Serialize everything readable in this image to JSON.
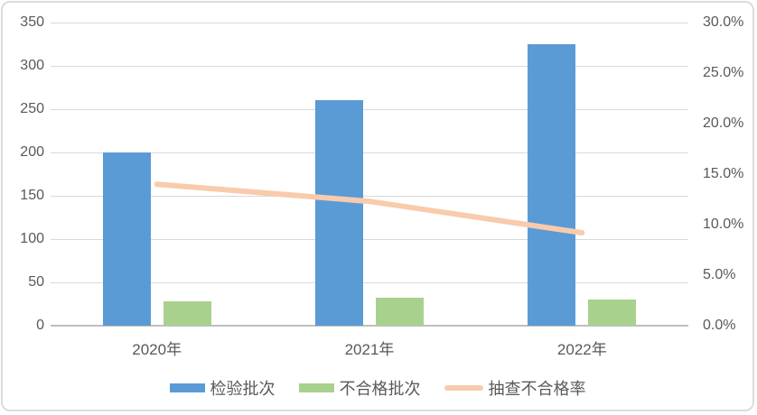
{
  "chart_data": {
    "type": "combo",
    "categories": [
      "2020年",
      "2021年",
      "2022年"
    ],
    "series": [
      {
        "name": "检验批次",
        "type": "bar",
        "axis": "left",
        "color": "#5B9BD5",
        "values": [
          200,
          260,
          325
        ]
      },
      {
        "name": "不合格批次",
        "type": "bar",
        "axis": "left",
        "color": "#A9D18E",
        "values": [
          28,
          32,
          30
        ]
      },
      {
        "name": "抽查不合格率",
        "type": "line",
        "axis": "right",
        "color": "#F8CBAD",
        "values": [
          14.0,
          12.3,
          9.2
        ],
        "unit": "%"
      }
    ],
    "left_axis": {
      "min": 0,
      "max": 350,
      "step": 50,
      "tick_labels": [
        "0",
        "50",
        "100",
        "150",
        "200",
        "250",
        "300",
        "350"
      ]
    },
    "right_axis": {
      "min": 0,
      "max": 30,
      "step": 5,
      "tick_labels": [
        "0.0%",
        "5.0%",
        "10.0%",
        "15.0%",
        "20.0%",
        "25.0%",
        "30.0%"
      ]
    },
    "grid": true,
    "legend_position": "bottom",
    "title": "",
    "xlabel": "",
    "ylabel": ""
  },
  "style": {
    "text_color": "#595959",
    "grid_color": "#D9D9D9",
    "axis_line_color": "#BFBFBF",
    "frame_border_color": "#DCDCDC",
    "background": "#FFFFFF"
  }
}
